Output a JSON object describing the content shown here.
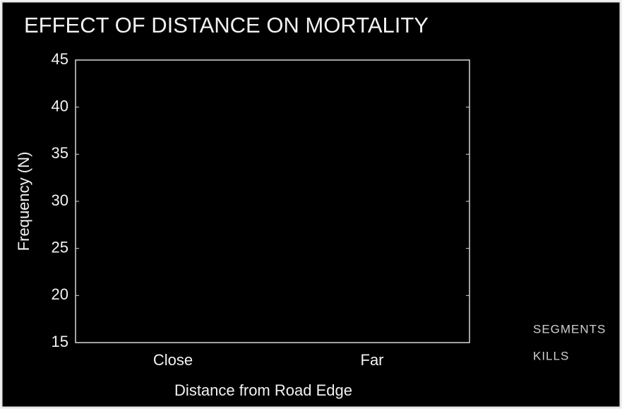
{
  "chart_data": {
    "type": "bar",
    "title": "EFFECT OF DISTANCE ON MORTALITY",
    "x_label": "Distance from Road Edge",
    "y_label": "Frequency (N)",
    "categories": [
      "Close",
      "Far"
    ],
    "series": [
      {
        "name": "SEGMENTS",
        "color": "#000000",
        "values": [
          null,
          null
        ]
      },
      {
        "name": "KILLS",
        "color": "#000000",
        "values": [
          null,
          null
        ]
      }
    ],
    "ylim": [
      15,
      45
    ],
    "yticks": [
      15,
      20,
      25,
      30,
      35,
      40,
      45
    ],
    "grid": false
  }
}
